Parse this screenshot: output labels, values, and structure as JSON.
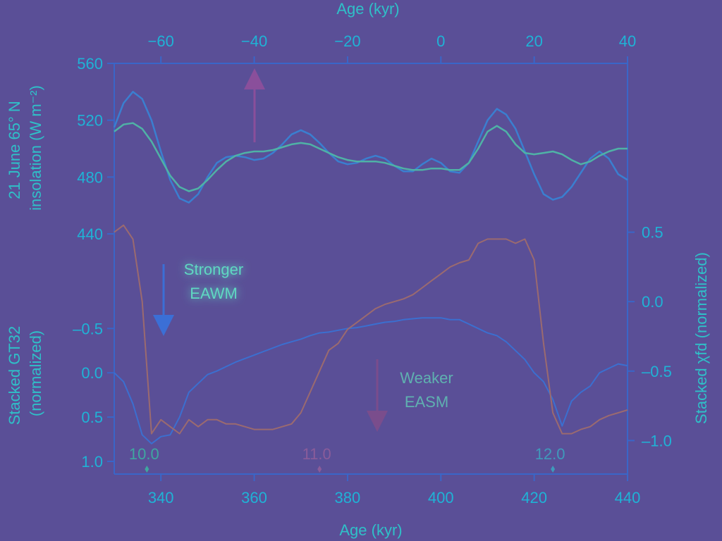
{
  "chart_data": [
    {
      "type": "line",
      "panel": "insolation",
      "ylabel": "21 June 65° N insolation (W m⁻²)",
      "yticks": [
        440,
        480,
        520,
        560
      ],
      "ylim": [
        440,
        560
      ],
      "xlabel_top": "Age (kyr)",
      "xticks_top": [
        -60,
        -40,
        -20,
        0,
        20,
        40
      ],
      "xlim_top": [
        -70,
        40
      ],
      "x": [
        330,
        332,
        334,
        336,
        338,
        340,
        342,
        344,
        346,
        348,
        350,
        352,
        354,
        356,
        358,
        360,
        362,
        364,
        366,
        368,
        370,
        372,
        374,
        376,
        378,
        380,
        382,
        384,
        386,
        388,
        390,
        392,
        394,
        396,
        398,
        400,
        402,
        404,
        406,
        408,
        410,
        412,
        414,
        416,
        418,
        420,
        422,
        424,
        426,
        428,
        430,
        432,
        434,
        436,
        438,
        440
      ],
      "series": [
        {
          "values": [
            515,
            532,
            540,
            535,
            520,
            498,
            478,
            465,
            462,
            468,
            480,
            490,
            494,
            495,
            494,
            492,
            493,
            497,
            503,
            510,
            513,
            510,
            504,
            497,
            491,
            489,
            490,
            493,
            495,
            493,
            488,
            484,
            484,
            489,
            493,
            490,
            484,
            483,
            490,
            505,
            520,
            528,
            524,
            514,
            498,
            482,
            468,
            464,
            466,
            473,
            483,
            493,
            498,
            493,
            482,
            478
          ],
          "color": "#3a7fd0"
        },
        {
          "values": [
            512,
            517,
            518,
            514,
            505,
            493,
            481,
            473,
            470,
            472,
            478,
            485,
            491,
            495,
            497,
            498,
            498,
            499,
            501,
            503,
            504,
            503,
            500,
            497,
            494,
            492,
            491,
            491,
            491,
            490,
            488,
            486,
            485,
            485,
            486,
            486,
            485,
            485,
            490,
            500,
            512,
            516,
            512,
            503,
            497,
            496,
            497,
            498,
            496,
            492,
            489,
            491,
            495,
            498,
            500,
            500
          ],
          "color": "#4fb2a6"
        }
      ]
    },
    {
      "type": "line",
      "panel": "proxies",
      "xlabel": "Age (kyr)",
      "xticks": [
        340,
        360,
        380,
        400,
        420,
        440
      ],
      "xlim": [
        330,
        440
      ],
      "ylabel_left": "Stacked GT32 (normalized)",
      "yticks_left": [
        "–0.5",
        "0.0",
        "0.5",
        "1.0"
      ],
      "ylim_left": [
        1.0,
        -1.25
      ],
      "ylabel_right": "Stacked χfd (normalized)",
      "yticks_right": [
        "0.5",
        "0.0",
        "–0.5",
        "–1.0"
      ],
      "ylim_right": [
        -1.15,
        0.65
      ],
      "x": [
        330,
        332,
        334,
        336,
        338,
        340,
        342,
        344,
        346,
        348,
        350,
        352,
        354,
        356,
        358,
        360,
        362,
        364,
        366,
        368,
        370,
        372,
        374,
        376,
        378,
        380,
        382,
        384,
        386,
        388,
        390,
        392,
        394,
        396,
        398,
        400,
        402,
        404,
        406,
        408,
        410,
        412,
        414,
        416,
        418,
        420,
        422,
        424,
        426,
        428,
        430,
        432,
        434,
        436,
        438,
        440
      ],
      "series": [
        {
          "axis": "left",
          "values": [
            0.0,
            0.1,
            0.35,
            0.7,
            0.8,
            0.72,
            0.7,
            0.5,
            0.22,
            0.12,
            0.02,
            -0.02,
            -0.07,
            -0.12,
            -0.16,
            -0.2,
            -0.24,
            -0.28,
            -0.32,
            -0.35,
            -0.38,
            -0.42,
            -0.45,
            -0.46,
            -0.48,
            -0.5,
            -0.51,
            -0.53,
            -0.55,
            -0.57,
            -0.58,
            -0.6,
            -0.61,
            -0.62,
            -0.62,
            -0.62,
            -0.6,
            -0.6,
            -0.55,
            -0.5,
            -0.45,
            -0.42,
            -0.35,
            -0.25,
            -0.15,
            0.0,
            0.1,
            0.3,
            0.6,
            0.32,
            0.22,
            0.15,
            0.0,
            -0.05,
            -0.1,
            -0.08
          ],
          "color": "#3b6fd0"
        },
        {
          "axis": "right",
          "values": [
            0.5,
            0.55,
            0.45,
            0.0,
            -0.95,
            -0.85,
            -0.9,
            -0.95,
            -0.85,
            -0.9,
            -0.85,
            -0.85,
            -0.88,
            -0.88,
            -0.9,
            -0.92,
            -0.92,
            -0.92,
            -0.9,
            -0.88,
            -0.8,
            -0.65,
            -0.5,
            -0.35,
            -0.3,
            -0.2,
            -0.15,
            -0.1,
            -0.05,
            -0.02,
            0.0,
            0.02,
            0.05,
            0.1,
            0.15,
            0.2,
            0.25,
            0.28,
            0.3,
            0.42,
            0.45,
            0.45,
            0.45,
            0.42,
            0.45,
            0.3,
            -0.3,
            -0.8,
            -0.95,
            -0.95,
            -0.92,
            -0.9,
            -0.85,
            -0.82,
            -0.8,
            -0.78
          ],
          "color": "#9b6a6f"
        }
      ],
      "annotations": [
        {
          "text": "Stronger",
          "color": "#5fd8c2"
        },
        {
          "text": "EAWM",
          "color": "#5fd8c2"
        },
        {
          "text": "Weaker",
          "color": "#5fb1b0"
        },
        {
          "text": "EASM",
          "color": "#5fb1b0"
        }
      ],
      "markers": [
        {
          "label": "10.0",
          "age": 337,
          "color": "#3fa7a0"
        },
        {
          "label": "11.0",
          "age": 374,
          "color": "#8a5c9a"
        },
        {
          "label": "12.0",
          "age": 424,
          "color": "#3f9abb"
        }
      ]
    }
  ],
  "colors": {
    "background": "#5a4f97",
    "axis": "#3a66c8",
    "tick_text": "#1fb3d6",
    "arrow_top": "#8a4f9b",
    "arrow_eawm": "#3b6fd6",
    "arrow_easm": "#7a4d8c"
  }
}
